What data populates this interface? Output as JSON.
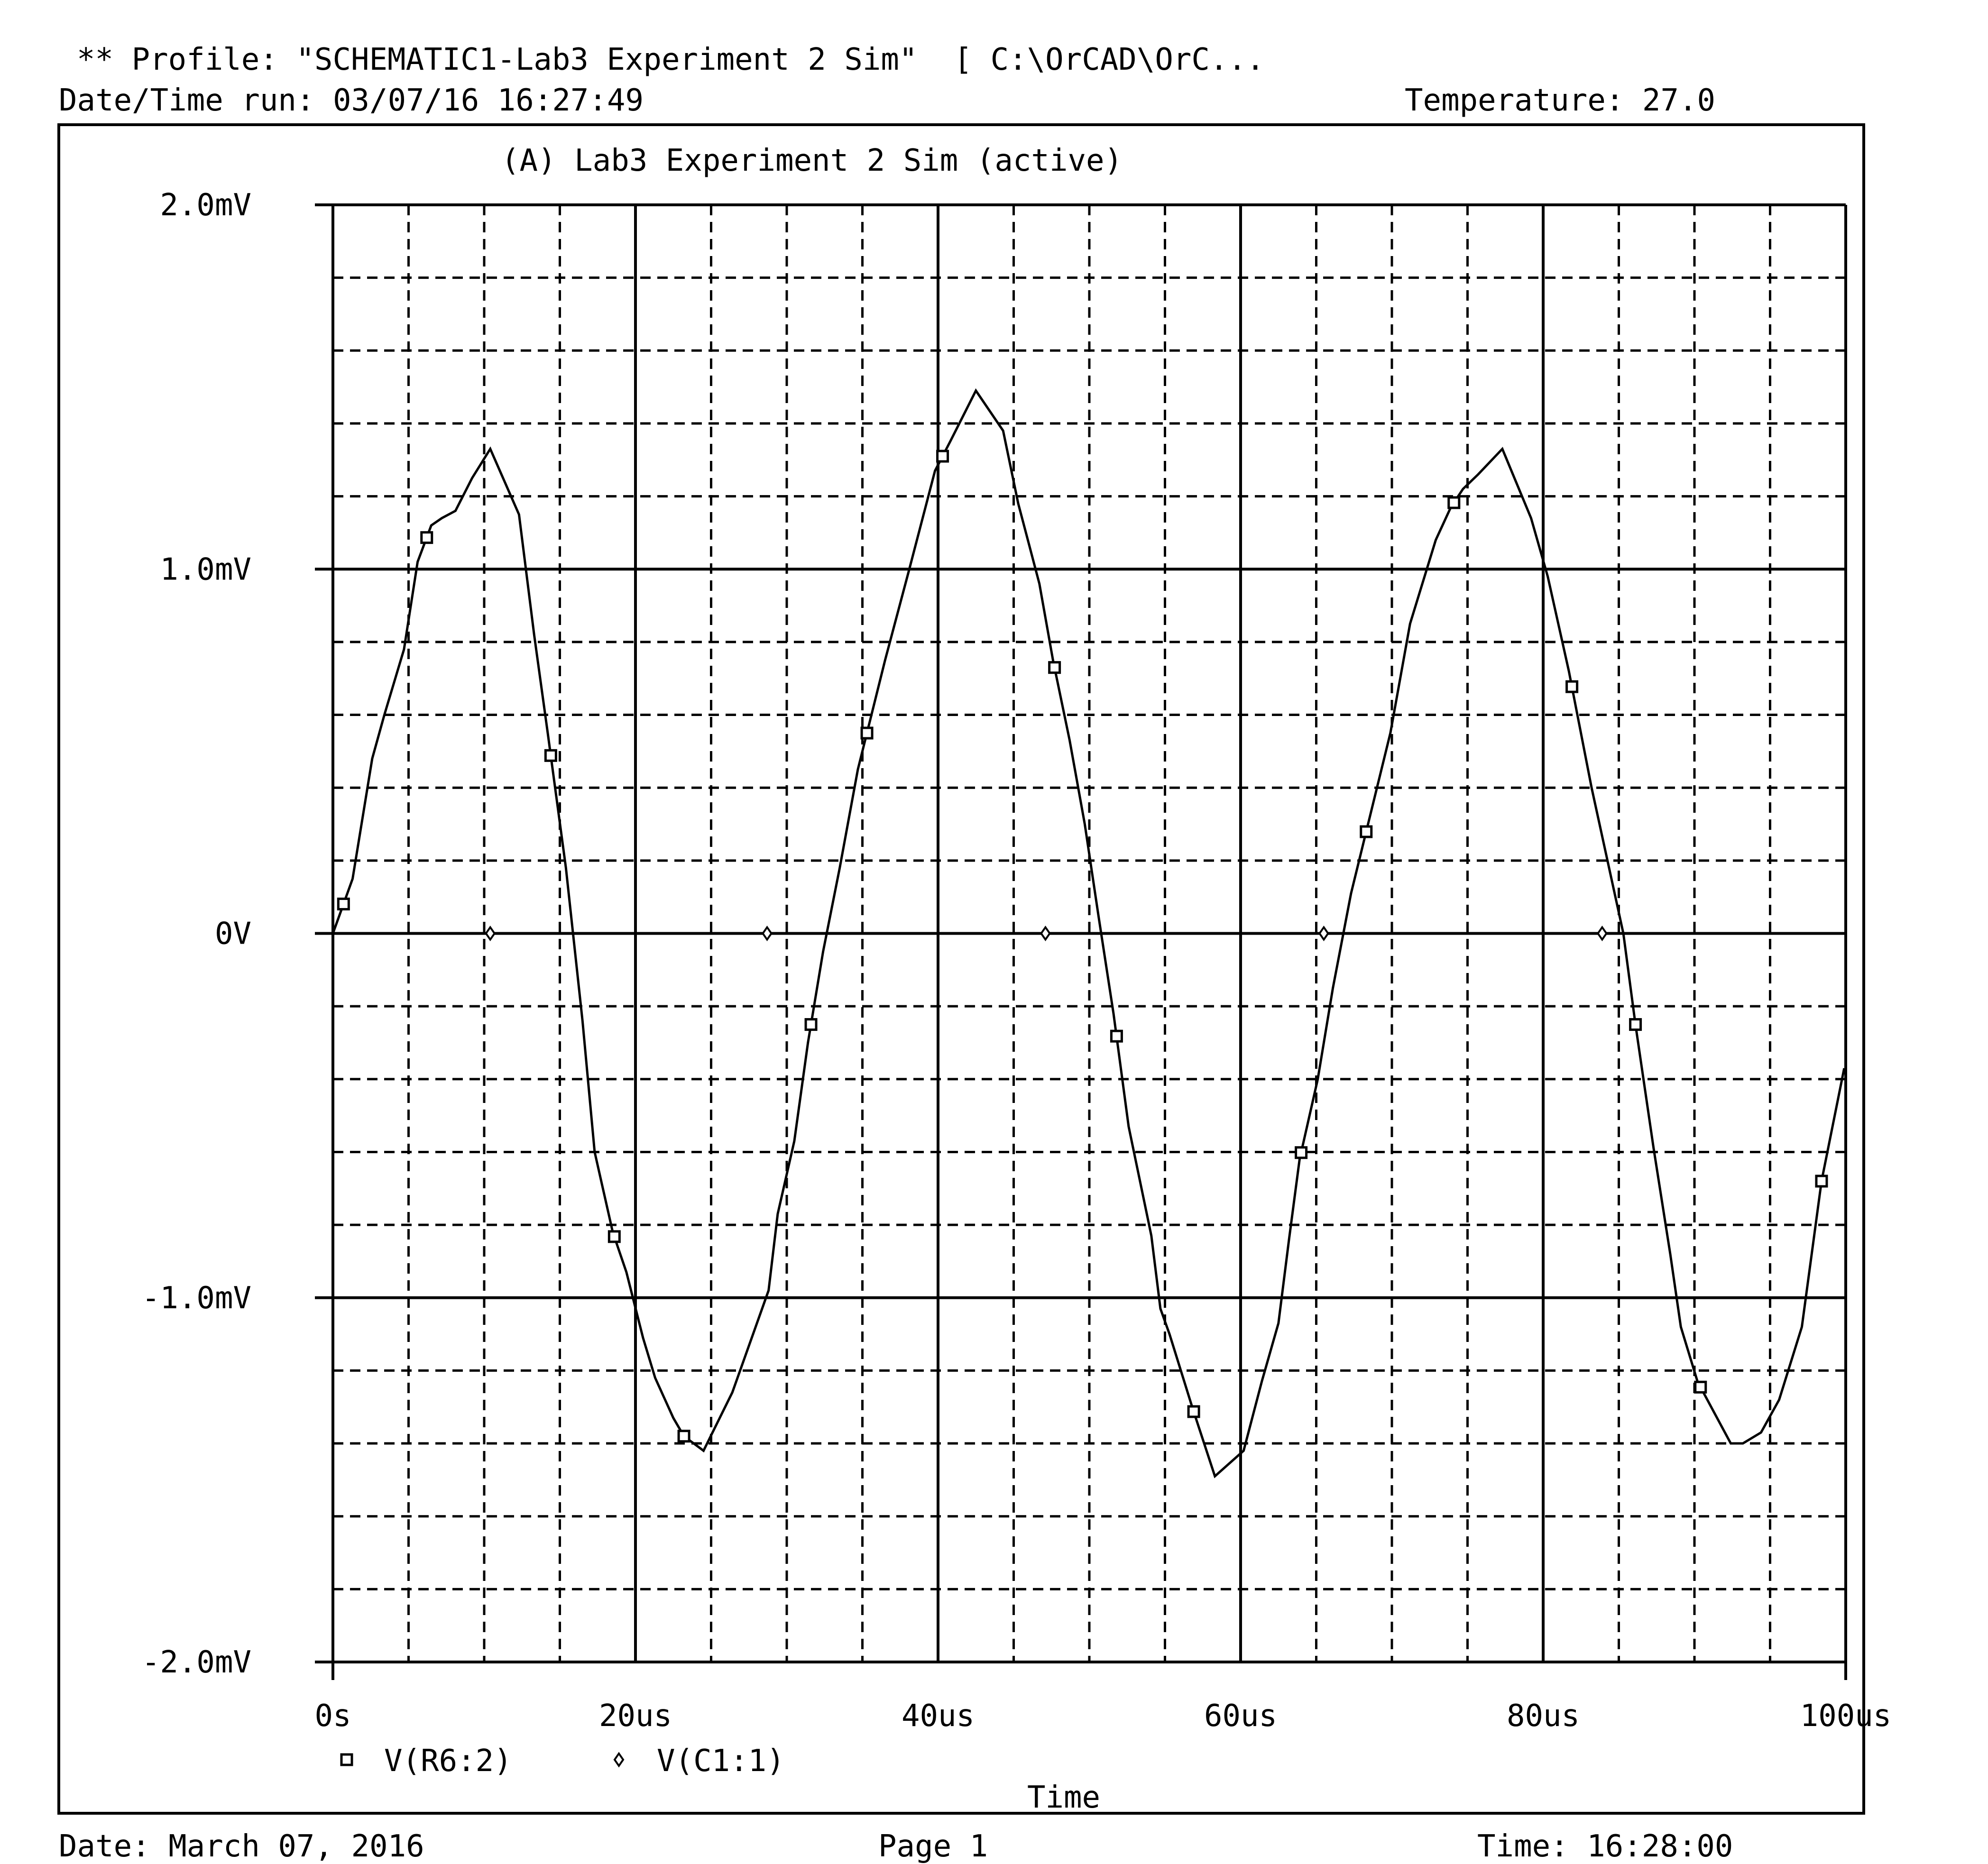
{
  "header": {
    "profile": "** Profile: \"SCHEMATIC1-Lab3 Experiment 2 Sim\"  [ C:\\OrCAD\\OrC...",
    "datetime": "Date/Time run: 03/07/16 16:27:49",
    "temperature": "Temperature: 27.0"
  },
  "footer": {
    "date": "Date: March 07, 2016",
    "page": "Page 1",
    "time": "Time: 16:28:00"
  },
  "colors": {
    "trace": "#000000",
    "grid": "#000000",
    "background": "#ffffff"
  },
  "chart_data": {
    "type": "line",
    "title": "(A) Lab3 Experiment 2 Sim (active)",
    "xlabel": "Time",
    "ylabel": "",
    "x_unit": "us",
    "y_unit": "mV",
    "xlim": [
      0,
      100
    ],
    "ylim": [
      -2.0,
      2.0
    ],
    "x_ticks": [
      {
        "value": 0,
        "label": "0s"
      },
      {
        "value": 20,
        "label": "20us"
      },
      {
        "value": 40,
        "label": "40us"
      },
      {
        "value": 60,
        "label": "60us"
      },
      {
        "value": 80,
        "label": "80us"
      },
      {
        "value": 100,
        "label": "100us"
      }
    ],
    "y_ticks": [
      {
        "value": 2.0,
        "label": "2.0mV"
      },
      {
        "value": 1.0,
        "label": "1.0mV"
      },
      {
        "value": 0,
        "label": "0V"
      },
      {
        "value": -1.0,
        "label": "-1.0mV"
      },
      {
        "value": -2.0,
        "label": "-2.0mV"
      }
    ],
    "grid": "major solid, minor dotted",
    "legend_position": "bottom-left",
    "series": [
      {
        "name": "V(R6:2)",
        "marker": "square",
        "x": [
          0,
          1.3,
          2.6,
          3.4,
          4.7,
          5.6,
          6.5,
          7.2,
          8.1,
          9.2,
          10.4,
          12.3,
          13.3,
          14.2,
          15.4,
          16.5,
          17.3,
          18.5,
          19.4,
          20.5,
          21.3,
          22.5,
          23.2,
          24.5,
          26.4,
          28.8,
          29.4,
          30.5,
          31.4,
          32.4,
          33.5,
          34.7,
          36.5,
          38.1,
          39.8,
          40.8,
          42.5,
          44.3,
          45.3,
          46.7,
          47.6,
          48.7,
          49.7,
          50.6,
          51.6,
          52.6,
          54.1,
          54.7,
          55.3,
          56.8,
          58.3,
          60.2,
          61.4,
          62.5,
          63.2,
          63.9,
          65.1,
          66.1,
          67.3,
          69.9,
          71.2,
          72.9,
          73.9,
          74.7,
          75.7,
          77.3,
          78.3,
          79.2,
          80.3,
          81.7,
          83.2,
          85.3,
          86.1,
          87.3,
          88.4,
          89.1,
          90.2,
          92.4,
          93.2,
          94.4,
          95.6,
          97.1,
          98.4,
          99.9
        ],
        "y": [
          0.0,
          0.15,
          0.48,
          0.6,
          0.78,
          1.02,
          1.12,
          1.14,
          1.16,
          1.25,
          1.33,
          1.15,
          0.82,
          0.55,
          0.18,
          -0.24,
          -0.6,
          -0.82,
          -0.93,
          -1.11,
          -1.22,
          -1.33,
          -1.38,
          -1.42,
          -1.26,
          -0.98,
          -0.77,
          -0.57,
          -0.3,
          -0.05,
          0.18,
          0.45,
          0.75,
          1.0,
          1.27,
          1.35,
          1.49,
          1.38,
          1.18,
          0.96,
          0.75,
          0.53,
          0.3,
          0.05,
          -0.22,
          -0.53,
          -0.83,
          -1.03,
          -1.1,
          -1.3,
          -1.49,
          -1.42,
          -1.23,
          -1.07,
          -0.84,
          -0.62,
          -0.4,
          -0.15,
          0.11,
          0.55,
          0.85,
          1.08,
          1.17,
          1.22,
          1.26,
          1.33,
          1.23,
          1.14,
          0.98,
          0.72,
          0.4,
          0.0,
          -0.25,
          -0.59,
          -0.88,
          -1.08,
          -1.23,
          -1.4,
          -1.4,
          -1.37,
          -1.28,
          -1.08,
          -0.68,
          -0.37
        ]
      },
      {
        "name": "V(C1:1)",
        "marker": "diamond",
        "x": [
          0,
          100
        ],
        "y": [
          0,
          0
        ]
      }
    ]
  }
}
